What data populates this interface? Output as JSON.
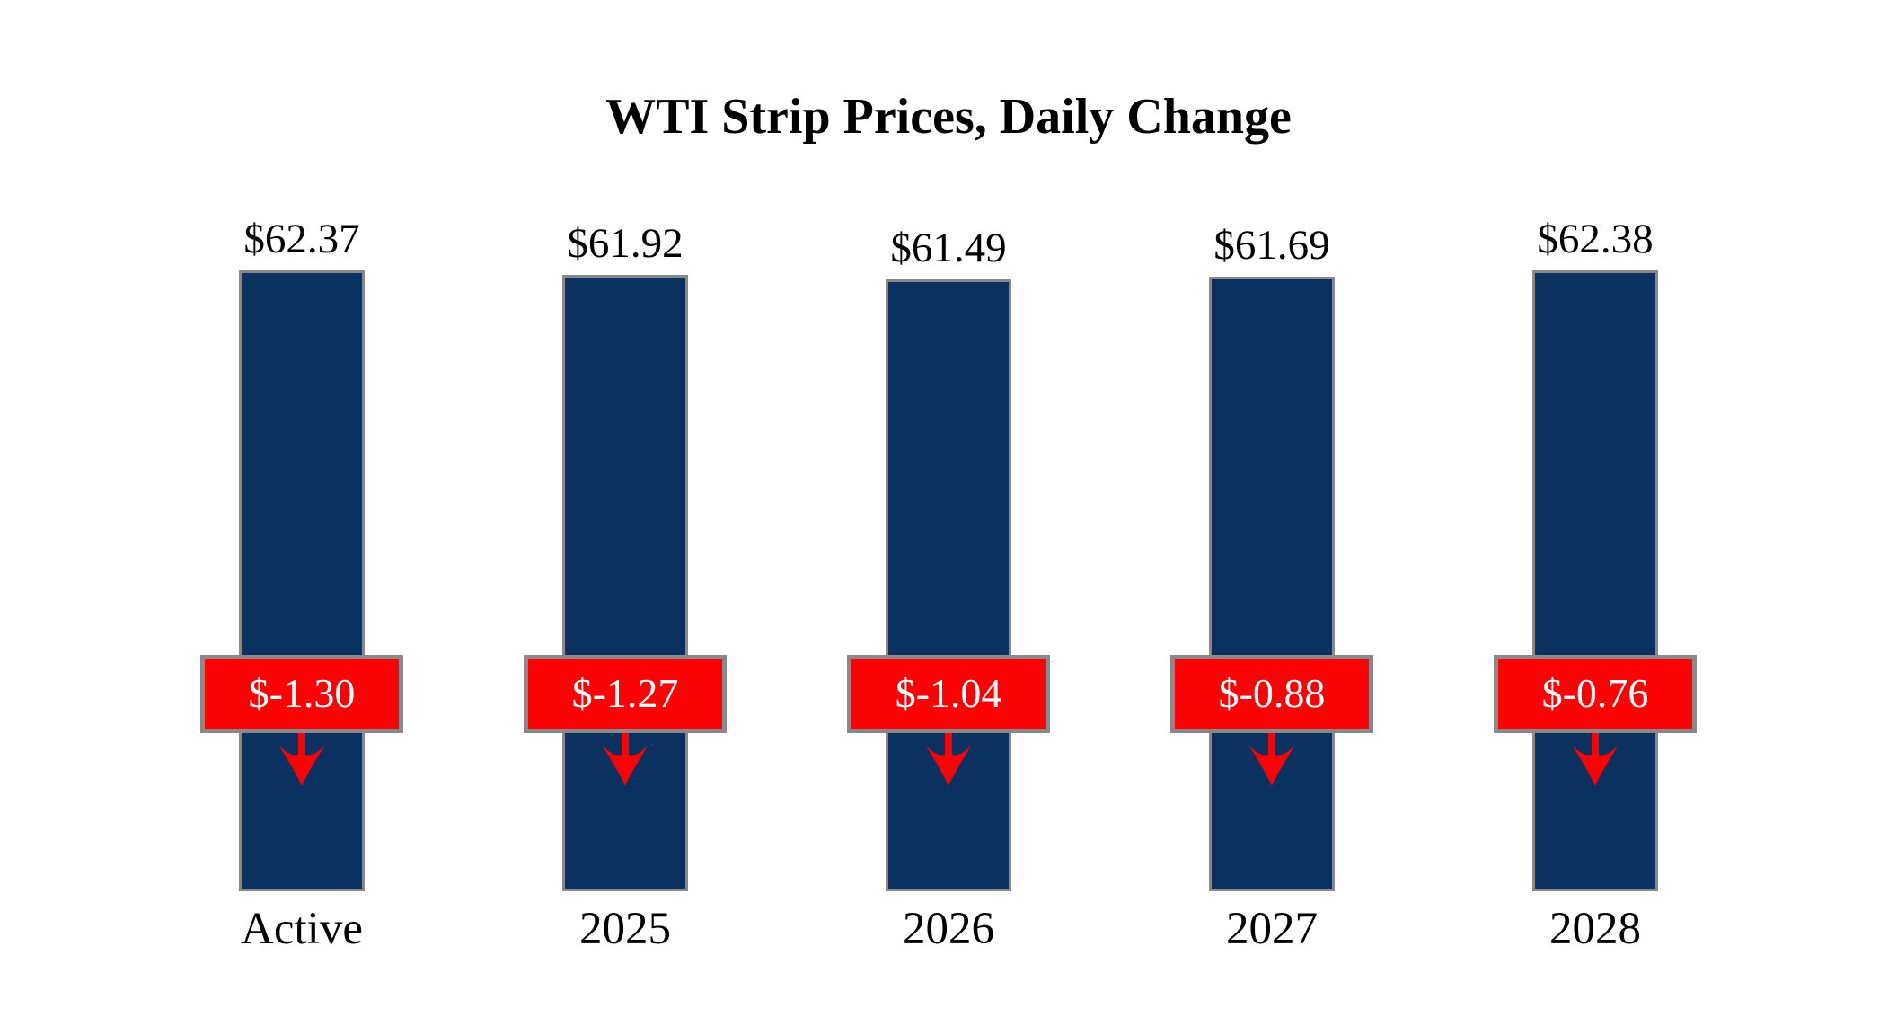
{
  "title": "WTI Strip Prices, Daily Change",
  "chart_data": {
    "type": "bar",
    "title": "WTI Strip Prices, Daily Change",
    "categories": [
      "Active",
      "2025",
      "2026",
      "2027",
      "2028"
    ],
    "series": [
      {
        "name": "strip_price",
        "values": [
          62.37,
          61.92,
          61.49,
          61.69,
          62.38
        ],
        "labels": [
          "$62.37",
          "$61.92",
          "$61.49",
          "$61.69",
          "$62.38"
        ]
      },
      {
        "name": "daily_change",
        "values": [
          -1.3,
          -1.27,
          -1.04,
          -0.88,
          -0.76
        ],
        "labels": [
          "$-1.30",
          "$-1.27",
          "$-1.04",
          "$-0.88",
          "$-0.76"
        ]
      }
    ],
    "ylim": [
      0,
      62.38
    ],
    "grid": false,
    "legend": false,
    "axes_visible": false,
    "colors": {
      "bar_fill": "#0A3160",
      "bar_border": "#898989",
      "change_box_fill": "#FB0205",
      "change_box_border": "#898989",
      "change_text": "#FFFFFF",
      "value_text": "#000000",
      "category_text": "#000000",
      "arrow": "#FB0205",
      "background": "#FFFFFF"
    }
  }
}
